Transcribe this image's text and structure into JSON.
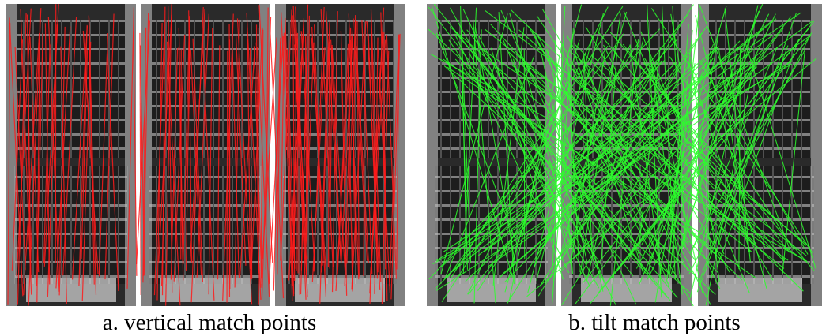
{
  "panels": [
    {
      "caption": "a. vertical match points"
    },
    {
      "caption": "b. tilt match points"
    }
  ]
}
